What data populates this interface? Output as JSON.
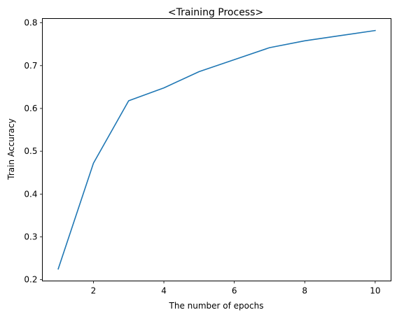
{
  "chart_data": {
    "type": "line",
    "title": "<Training Process>",
    "xlabel": "The number of epochs",
    "ylabel": "Train Accuracy",
    "xlim": [
      0.55,
      10.45
    ],
    "ylim": [
      0.197,
      0.81
    ],
    "xticks": [
      2,
      4,
      6,
      8,
      10
    ],
    "yticks": [
      0.2,
      0.3,
      0.4,
      0.5,
      0.6,
      0.7,
      0.8
    ],
    "xtick_labels": [
      "2",
      "4",
      "6",
      "8",
      "10"
    ],
    "ytick_labels": [
      "0.2",
      "0.3",
      "0.4",
      "0.5",
      "0.6",
      "0.7",
      "0.8"
    ],
    "grid": false,
    "series": [
      {
        "color": "#1f77b4",
        "x": [
          1,
          2,
          3,
          4,
          5,
          6,
          7,
          8,
          9,
          10
        ],
        "y": [
          0.225,
          0.472,
          0.618,
          0.648,
          0.686,
          0.714,
          0.742,
          0.758,
          0.77,
          0.782
        ]
      }
    ]
  }
}
